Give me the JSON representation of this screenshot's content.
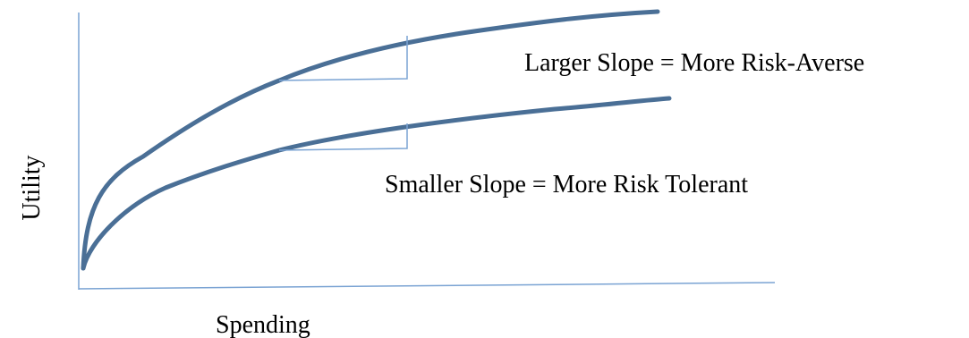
{
  "axes": {
    "x_label": "Spending",
    "y_label": "Utility"
  },
  "annotations": {
    "upper_curve": "Larger Slope = More Risk-Averse",
    "lower_curve": "Smaller Slope = More Risk Tolerant"
  },
  "colors": {
    "curve": "#4a6f96",
    "axis": "#7aa3d3",
    "slope_marker": "#7aa3d3",
    "text": "#000000"
  }
}
